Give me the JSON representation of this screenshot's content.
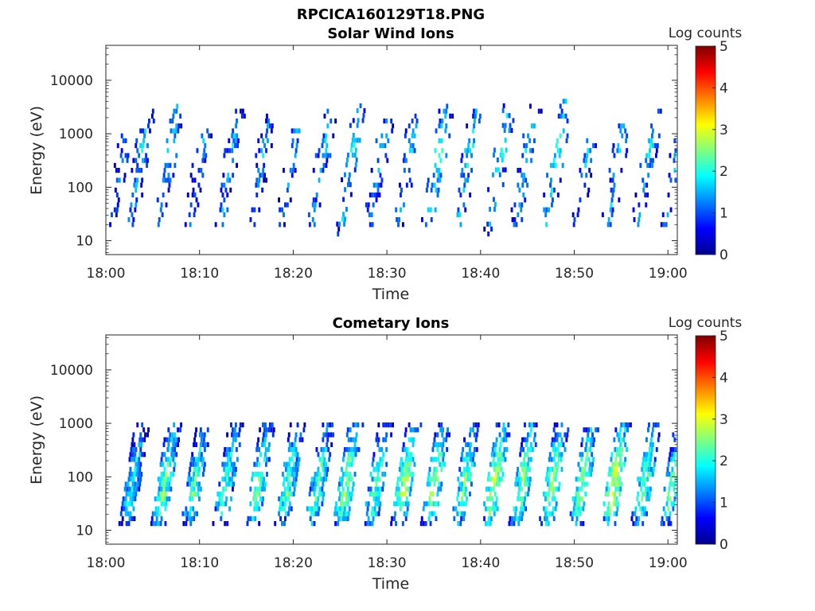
{
  "figure_title": "RPCICA160129T18.PNG",
  "colorbar_label": "Log counts",
  "colormap": [
    "#00008f",
    "#0000ff",
    "#0080ff",
    "#00ffff",
    "#80ff80",
    "#ffff00",
    "#ff8000",
    "#ff0000",
    "#800000"
  ],
  "chart_data": [
    {
      "type": "heatmap",
      "title": "Solar Wind Ions",
      "xlabel": "Time",
      "ylabel": "Energy (eV)",
      "x_ticks": [
        "18:00",
        "18:10",
        "18:20",
        "18:30",
        "18:40",
        "18:50",
        "19:00"
      ],
      "x_range_min": [
        0,
        61
      ],
      "y_scale": "log",
      "y_ticks": [
        "10",
        "100",
        "1000",
        "10000"
      ],
      "y_tick_values": [
        10,
        100,
        1000,
        10000
      ],
      "y_range_ev": [
        5.5,
        45000
      ],
      "colorbar_range": [
        0,
        5
      ],
      "colorbar_ticks": [
        "0",
        "1",
        "2",
        "3",
        "4",
        "5"
      ],
      "bursts": [
        {
          "t": 0.5,
          "z": 1.3,
          "lo": 18,
          "hi": 900
        },
        {
          "t": 2.4,
          "z": 1.7,
          "lo": 18,
          "hi": 2500
        },
        {
          "t": 5.4,
          "z": 1.8,
          "lo": 18,
          "hi": 3000
        },
        {
          "t": 8.8,
          "z": 1.5,
          "lo": 18,
          "hi": 1200
        },
        {
          "t": 12.0,
          "z": 1.6,
          "lo": 18,
          "hi": 3500
        },
        {
          "t": 15.4,
          "z": 1.5,
          "lo": 18,
          "hi": 2000
        },
        {
          "t": 18.6,
          "z": 1.7,
          "lo": 18,
          "hi": 1100
        },
        {
          "t": 21.8,
          "z": 1.6,
          "lo": 18,
          "hi": 2500
        },
        {
          "t": 24.8,
          "z": 1.9,
          "lo": 12,
          "hi": 3500
        },
        {
          "t": 28.0,
          "z": 1.7,
          "lo": 18,
          "hi": 2000
        },
        {
          "t": 31.0,
          "z": 1.8,
          "lo": 18,
          "hi": 2000
        },
        {
          "t": 34.2,
          "z": 2.2,
          "lo": 18,
          "hi": 3500
        },
        {
          "t": 37.4,
          "z": 1.9,
          "lo": 18,
          "hi": 3500
        },
        {
          "t": 40.6,
          "z": 1.9,
          "lo": 12,
          "hi": 3500
        },
        {
          "t": 43.6,
          "z": 1.9,
          "lo": 18,
          "hi": 3200
        },
        {
          "t": 46.8,
          "z": 2.1,
          "lo": 18,
          "hi": 4500
        },
        {
          "t": 50.0,
          "z": 1.6,
          "lo": 18,
          "hi": 800
        },
        {
          "t": 53.4,
          "z": 1.9,
          "lo": 18,
          "hi": 1500
        },
        {
          "t": 56.6,
          "z": 1.7,
          "lo": 18,
          "hi": 2500
        },
        {
          "t": 59.6,
          "z": 1.7,
          "lo": 18,
          "hi": 1400
        }
      ]
    },
    {
      "type": "heatmap",
      "title": "Cometary Ions",
      "xlabel": "Time",
      "ylabel": "Energy (eV)",
      "x_ticks": [
        "18:00",
        "18:10",
        "18:20",
        "18:30",
        "18:40",
        "18:50",
        "19:00"
      ],
      "x_range_min": [
        0,
        61
      ],
      "y_scale": "log",
      "y_ticks": [
        "10",
        "100",
        "1000",
        "10000"
      ],
      "y_tick_values": [
        10,
        100,
        1000,
        10000
      ],
      "y_range_ev": [
        5.5,
        45000
      ],
      "colorbar_range": [
        0,
        5
      ],
      "colorbar_ticks": [
        "0",
        "1",
        "2",
        "3",
        "4",
        "5"
      ],
      "bursts": [
        {
          "t": 2.0,
          "z": 2.0,
          "lo": 12,
          "hi": 1000
        },
        {
          "t": 5.4,
          "z": 2.5,
          "lo": 12,
          "hi": 1000
        },
        {
          "t": 8.6,
          "z": 2.2,
          "lo": 12,
          "hi": 800
        },
        {
          "t": 12.0,
          "z": 2.2,
          "lo": 12,
          "hi": 900
        },
        {
          "t": 15.4,
          "z": 2.4,
          "lo": 12,
          "hi": 900
        },
        {
          "t": 18.6,
          "z": 2.3,
          "lo": 12,
          "hi": 900
        },
        {
          "t": 21.8,
          "z": 2.3,
          "lo": 12,
          "hi": 900
        },
        {
          "t": 24.8,
          "z": 2.6,
          "lo": 12,
          "hi": 1000
        },
        {
          "t": 28.0,
          "z": 2.3,
          "lo": 12,
          "hi": 900
        },
        {
          "t": 31.0,
          "z": 2.8,
          "lo": 12,
          "hi": 900
        },
        {
          "t": 34.2,
          "z": 2.6,
          "lo": 12,
          "hi": 1000
        },
        {
          "t": 37.4,
          "z": 2.4,
          "lo": 12,
          "hi": 900
        },
        {
          "t": 40.6,
          "z": 2.8,
          "lo": 12,
          "hi": 900
        },
        {
          "t": 43.6,
          "z": 2.6,
          "lo": 12,
          "hi": 1000
        },
        {
          "t": 46.8,
          "z": 2.7,
          "lo": 12,
          "hi": 900
        },
        {
          "t": 50.0,
          "z": 2.6,
          "lo": 12,
          "hi": 800
        },
        {
          "t": 53.4,
          "z": 3.0,
          "lo": 12,
          "hi": 900
        },
        {
          "t": 56.6,
          "z": 2.4,
          "lo": 12,
          "hi": 900
        },
        {
          "t": 59.6,
          "z": 2.3,
          "lo": 12,
          "hi": 900
        }
      ]
    }
  ]
}
